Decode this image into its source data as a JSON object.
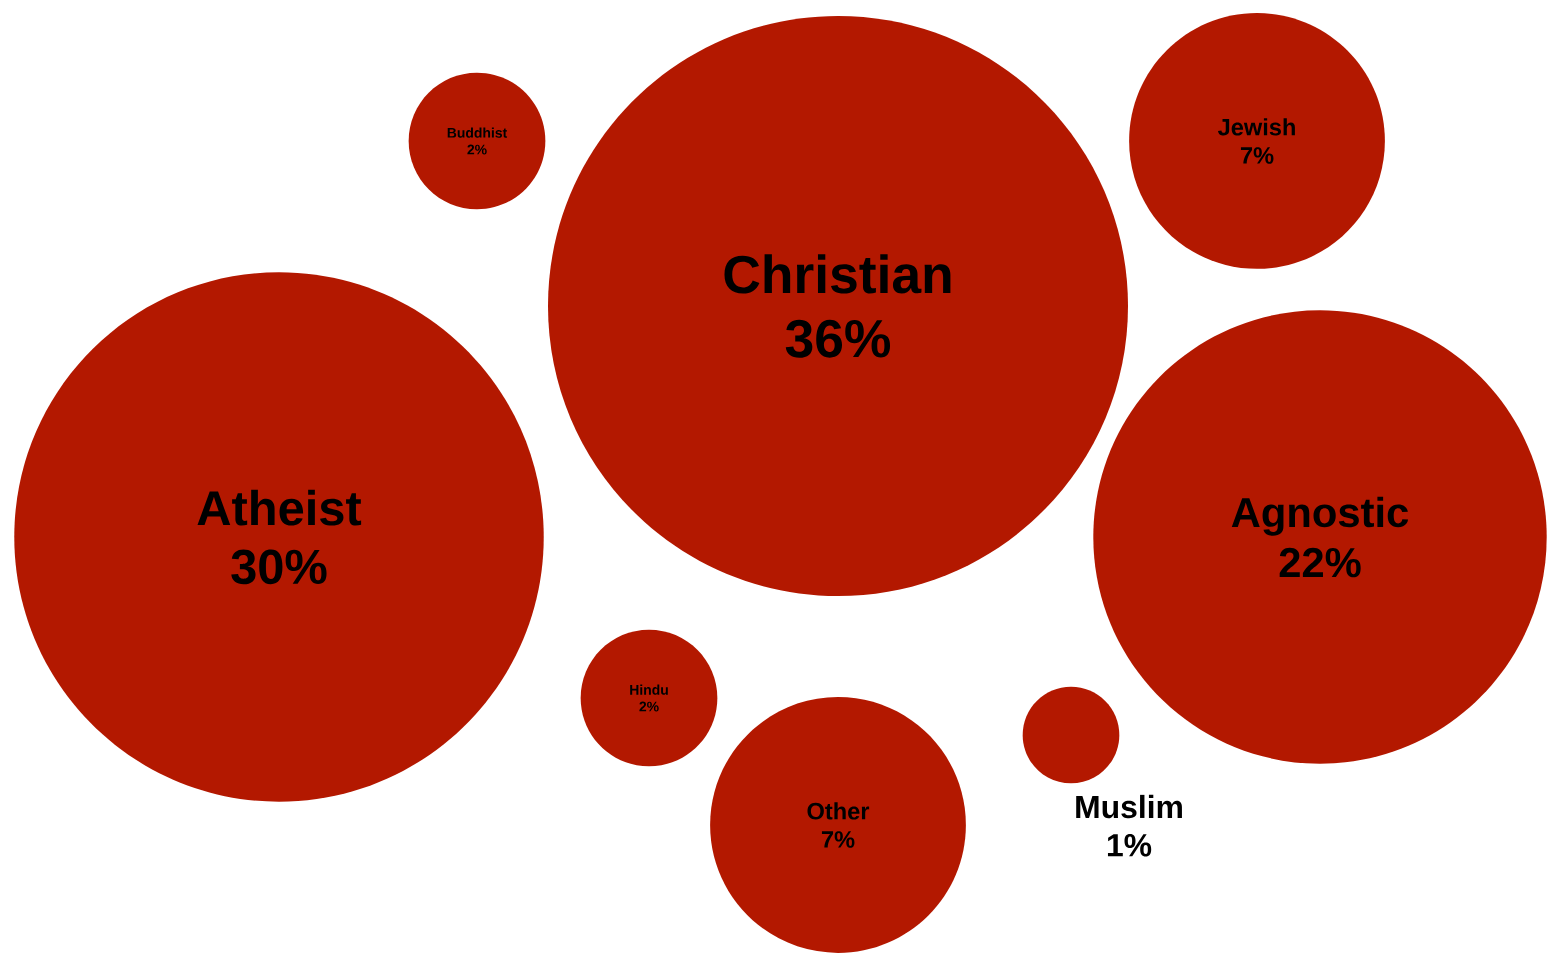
{
  "chart_data": {
    "type": "other",
    "categories": [
      "Christian",
      "Atheist",
      "Agnostic",
      "Jewish",
      "Other",
      "Buddhist",
      "Hindu",
      "Muslim"
    ],
    "values": [
      36,
      30,
      22,
      7,
      7,
      2,
      2,
      1
    ],
    "value_labels": [
      "36%",
      "30%",
      "22%",
      "7%",
      "7%",
      "2%",
      "2%",
      "1%"
    ],
    "color": "#b31800",
    "data_labels": true
  }
}
